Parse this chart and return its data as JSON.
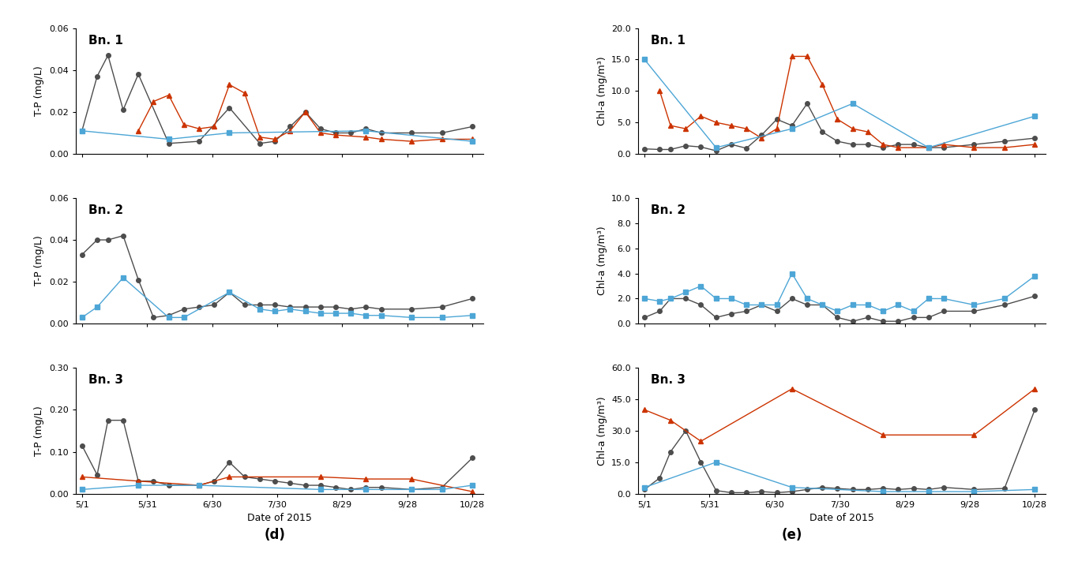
{
  "x_labels": [
    "5/1",
    "5/31",
    "6/30",
    "7/30",
    "8/29",
    "9/28",
    "10/28"
  ],
  "x_positions": [
    0,
    30,
    60,
    90,
    120,
    150,
    180
  ],
  "tp_bn1_gray": {
    "x": [
      0,
      7,
      12,
      19,
      26,
      40,
      54,
      68,
      82,
      89,
      96,
      103,
      110,
      117,
      124,
      131,
      138,
      152,
      166,
      180
    ],
    "y": [
      0.011,
      0.037,
      0.047,
      0.021,
      0.038,
      0.005,
      0.006,
      0.022,
      0.005,
      0.006,
      0.013,
      0.02,
      0.012,
      0.01,
      0.01,
      0.012,
      0.01,
      0.01,
      0.01,
      0.013
    ]
  },
  "tp_bn1_orange": {
    "x": [
      26,
      33,
      40,
      47,
      54,
      61,
      68,
      75,
      82,
      89,
      96,
      103,
      110,
      117,
      131,
      138,
      152,
      166,
      180
    ],
    "y": [
      0.011,
      0.025,
      0.028,
      0.014,
      0.012,
      0.013,
      0.033,
      0.029,
      0.008,
      0.007,
      0.011,
      0.02,
      0.01,
      0.009,
      0.008,
      0.007,
      0.006,
      0.007,
      0.007
    ]
  },
  "tp_bn1_blue": {
    "x": [
      0,
      40,
      68,
      131,
      180
    ],
    "y": [
      0.011,
      0.007,
      0.01,
      0.011,
      0.006
    ]
  },
  "tp_bn2_gray": {
    "x": [
      0,
      7,
      12,
      19,
      26,
      33,
      40,
      47,
      54,
      61,
      68,
      75,
      82,
      89,
      96,
      103,
      110,
      117,
      124,
      131,
      138,
      152,
      166,
      180
    ],
    "y": [
      0.033,
      0.04,
      0.04,
      0.042,
      0.021,
      0.003,
      0.004,
      0.007,
      0.008,
      0.009,
      0.015,
      0.009,
      0.009,
      0.009,
      0.008,
      0.008,
      0.008,
      0.008,
      0.007,
      0.008,
      0.007,
      0.007,
      0.008,
      0.012
    ]
  },
  "tp_bn2_blue": {
    "x": [
      0,
      7,
      19,
      40,
      47,
      68,
      82,
      89,
      96,
      103,
      110,
      117,
      124,
      131,
      138,
      152,
      166,
      180
    ],
    "y": [
      0.003,
      0.008,
      0.022,
      0.003,
      0.003,
      0.015,
      0.007,
      0.006,
      0.007,
      0.006,
      0.005,
      0.005,
      0.005,
      0.004,
      0.004,
      0.003,
      0.003,
      0.004
    ]
  },
  "tp_bn3_gray": {
    "x": [
      0,
      7,
      12,
      19,
      26,
      33,
      40,
      54,
      61,
      68,
      75,
      82,
      89,
      96,
      103,
      110,
      117,
      124,
      131,
      138,
      152,
      166,
      180
    ],
    "y": [
      0.115,
      0.045,
      0.175,
      0.175,
      0.03,
      0.03,
      0.02,
      0.02,
      0.03,
      0.075,
      0.04,
      0.035,
      0.03,
      0.025,
      0.02,
      0.02,
      0.015,
      0.01,
      0.015,
      0.015,
      0.01,
      0.015,
      0.085
    ]
  },
  "tp_bn3_orange": {
    "x": [
      0,
      26,
      54,
      68,
      110,
      131,
      152,
      180
    ],
    "y": [
      0.04,
      0.03,
      0.02,
      0.04,
      0.04,
      0.035,
      0.035,
      0.005
    ]
  },
  "tp_bn3_blue": {
    "x": [
      0,
      26,
      54,
      110,
      131,
      152,
      166,
      180
    ],
    "y": [
      0.01,
      0.02,
      0.02,
      0.01,
      0.01,
      0.01,
      0.01,
      0.02
    ]
  },
  "chla_bn1_gray": {
    "x": [
      0,
      7,
      12,
      19,
      26,
      33,
      40,
      47,
      54,
      61,
      68,
      75,
      82,
      89,
      96,
      103,
      110,
      117,
      124,
      131,
      138,
      152,
      166,
      180
    ],
    "y": [
      0.8,
      0.7,
      0.7,
      1.3,
      1.1,
      0.5,
      1.5,
      0.9,
      3.0,
      5.5,
      4.5,
      8.0,
      3.5,
      2.0,
      1.5,
      1.5,
      1.0,
      1.5,
      1.5,
      1.0,
      1.0,
      1.5,
      2.0,
      2.5
    ]
  },
  "chla_bn1_orange": {
    "x": [
      7,
      12,
      19,
      26,
      33,
      40,
      47,
      54,
      61,
      68,
      75,
      82,
      89,
      96,
      103,
      110,
      117,
      131,
      138,
      152,
      166,
      180
    ],
    "y": [
      10.0,
      4.5,
      4.0,
      6.0,
      5.0,
      4.5,
      4.0,
      2.5,
      4.0,
      15.5,
      15.5,
      11.0,
      5.5,
      4.0,
      3.5,
      1.5,
      1.0,
      1.0,
      1.5,
      1.0,
      1.0,
      1.5
    ]
  },
  "chla_bn1_blue": {
    "x": [
      0,
      33,
      68,
      96,
      131,
      180
    ],
    "y": [
      15.0,
      1.0,
      4.0,
      8.0,
      1.0,
      6.0
    ]
  },
  "chla_bn2_gray": {
    "x": [
      0,
      7,
      12,
      19,
      26,
      33,
      40,
      47,
      54,
      61,
      68,
      75,
      82,
      89,
      96,
      103,
      110,
      117,
      124,
      131,
      138,
      152,
      166,
      180
    ],
    "y": [
      0.5,
      1.0,
      2.0,
      2.0,
      1.5,
      0.5,
      0.8,
      1.0,
      1.5,
      1.0,
      2.0,
      1.5,
      1.5,
      0.5,
      0.2,
      0.5,
      0.2,
      0.2,
      0.5,
      0.5,
      1.0,
      1.0,
      1.5,
      2.2
    ]
  },
  "chla_bn2_blue": {
    "x": [
      0,
      7,
      12,
      19,
      26,
      33,
      40,
      47,
      54,
      61,
      68,
      75,
      82,
      89,
      96,
      103,
      110,
      117,
      124,
      131,
      138,
      152,
      166,
      180
    ],
    "y": [
      2.0,
      1.8,
      2.0,
      2.5,
      3.0,
      2.0,
      2.0,
      1.5,
      1.5,
      1.5,
      4.0,
      2.0,
      1.5,
      1.0,
      1.5,
      1.5,
      1.0,
      1.5,
      1.0,
      2.0,
      2.0,
      1.5,
      2.0,
      3.8
    ]
  },
  "chla_bn3_gray": {
    "x": [
      0,
      7,
      12,
      19,
      26,
      33,
      40,
      47,
      54,
      61,
      68,
      75,
      82,
      89,
      96,
      103,
      110,
      117,
      124,
      131,
      138,
      152,
      166,
      180
    ],
    "y": [
      2.0,
      7.5,
      20.0,
      30.0,
      15.0,
      1.5,
      0.5,
      0.5,
      1.0,
      0.5,
      1.0,
      2.0,
      3.0,
      2.5,
      2.0,
      2.0,
      2.5,
      2.0,
      2.5,
      2.0,
      3.0,
      2.0,
      2.5,
      40.0
    ]
  },
  "chla_bn3_orange": {
    "x": [
      0,
      12,
      26,
      68,
      110,
      152,
      180
    ],
    "y": [
      40.0,
      35.0,
      25.0,
      50.0,
      28.0,
      28.0,
      50.0
    ]
  },
  "chla_bn3_blue": {
    "x": [
      0,
      33,
      68,
      110,
      131,
      152,
      180
    ],
    "y": [
      3.0,
      15.0,
      3.0,
      1.0,
      1.0,
      1.0,
      2.0
    ]
  },
  "colors": {
    "gray": "#4d4d4d",
    "orange": "#cc3300",
    "blue": "#4da6d6"
  },
  "subplot_label_d": "(d)",
  "subplot_label_e": "(e)"
}
